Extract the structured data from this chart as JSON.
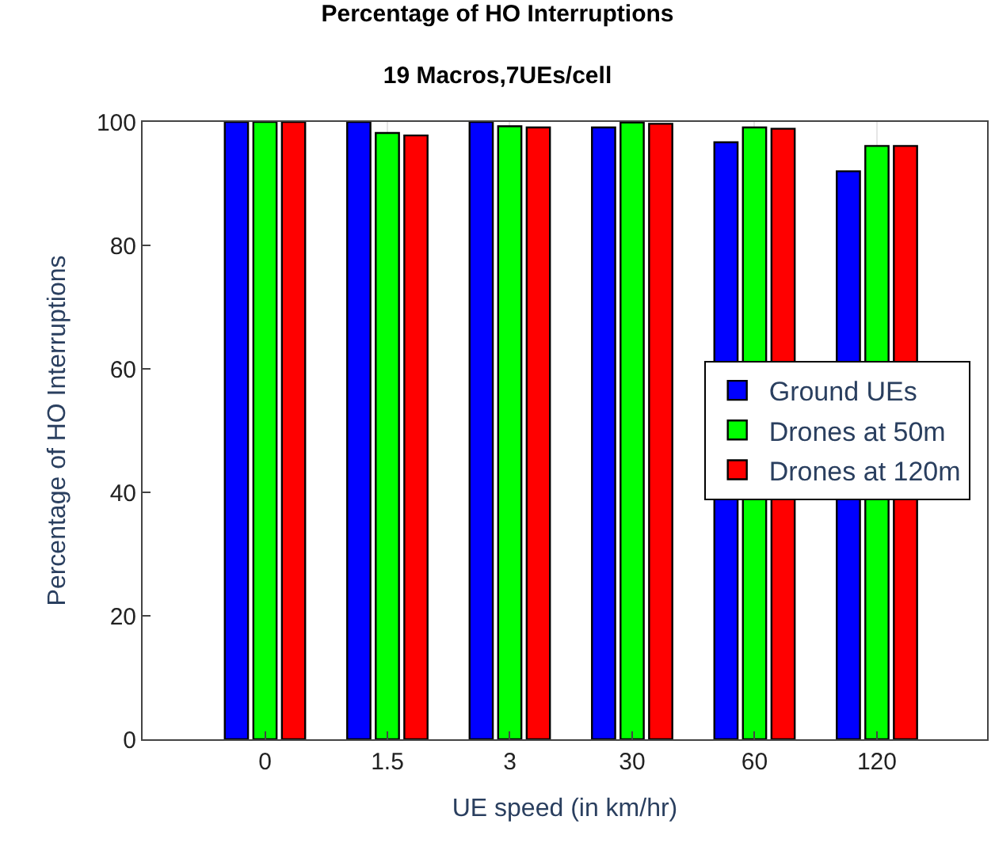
{
  "chart_data": {
    "type": "bar",
    "title": "Percentage of HO Interruptions",
    "subtitle": "19 Macros,7UEs/cell",
    "xlabel": "UE speed (in km/hr)",
    "ylabel": "Percentage of HO Interruptions",
    "categories": [
      "0",
      "1.5",
      "3",
      "30",
      "60",
      "120"
    ],
    "series": [
      {
        "name": "Ground UEs",
        "color": "#0000ff",
        "values": [
          100,
          100,
          100,
          99.1,
          96.7,
          92.0
        ]
      },
      {
        "name": "Drones at 50m",
        "color": "#00ff00",
        "values": [
          100,
          98.2,
          99.3,
          99.9,
          99.1,
          96.1
        ]
      },
      {
        "name": "Drones at 120m",
        "color": "#ff0000",
        "values": [
          100,
          97.8,
          99.1,
          99.7,
          98.9,
          96.1
        ]
      }
    ],
    "ylim": [
      0,
      100
    ],
    "yticks": [
      0,
      20,
      40,
      60,
      80,
      100
    ],
    "grid": "x",
    "legend": "right"
  }
}
